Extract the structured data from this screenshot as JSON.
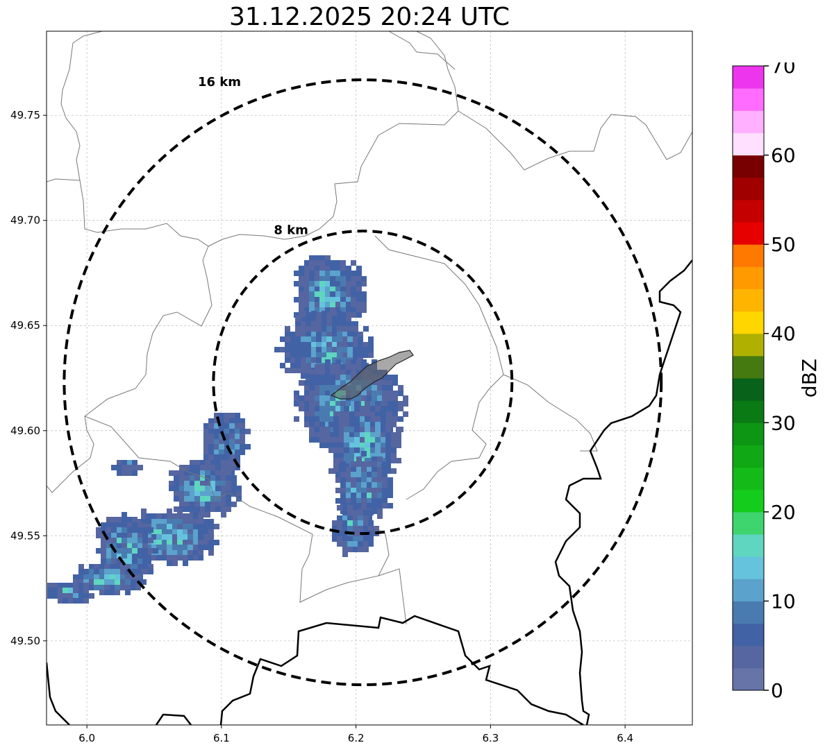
{
  "title": "31.12.2025 20:24 UTC",
  "map": {
    "x_ticks": [
      "6.0",
      "6.1",
      "6.2",
      "6.3",
      "6.4"
    ],
    "y_ticks": [
      "49.75",
      "49.70",
      "49.65",
      "49.60",
      "49.55",
      "49.50"
    ],
    "lon_range": [
      5.97,
      6.45
    ],
    "lat_range": [
      49.46,
      49.79
    ],
    "range_rings": [
      {
        "label": "16 km",
        "radius_km": 16
      },
      {
        "label": "8 km",
        "radius_km": 8
      }
    ],
    "radar_center": [
      6.205,
      49.623
    ],
    "grid": true
  },
  "colorbar": {
    "label": "dBZ",
    "ticks": [
      "0",
      "10",
      "20",
      "30",
      "40",
      "50",
      "60",
      "70"
    ],
    "range": [
      0,
      70
    ],
    "colors": [
      "#6674a8",
      "#5666a0",
      "#4262a6",
      "#4a7bb0",
      "#5ba2cc",
      "#65c3dd",
      "#5fd6c0",
      "#3ed46e",
      "#14cc1c",
      "#14bb18",
      "#10a814",
      "#0c9614",
      "#0a7a14",
      "#08621a",
      "#447a10",
      "#b0b000",
      "#ffd600",
      "#ffb400",
      "#ff9a00",
      "#ff7800",
      "#e60000",
      "#c40000",
      "#a00000",
      "#780000",
      "#ffe0ff",
      "#ffb0ff",
      "#ff6cff",
      "#ee35ee"
    ]
  }
}
